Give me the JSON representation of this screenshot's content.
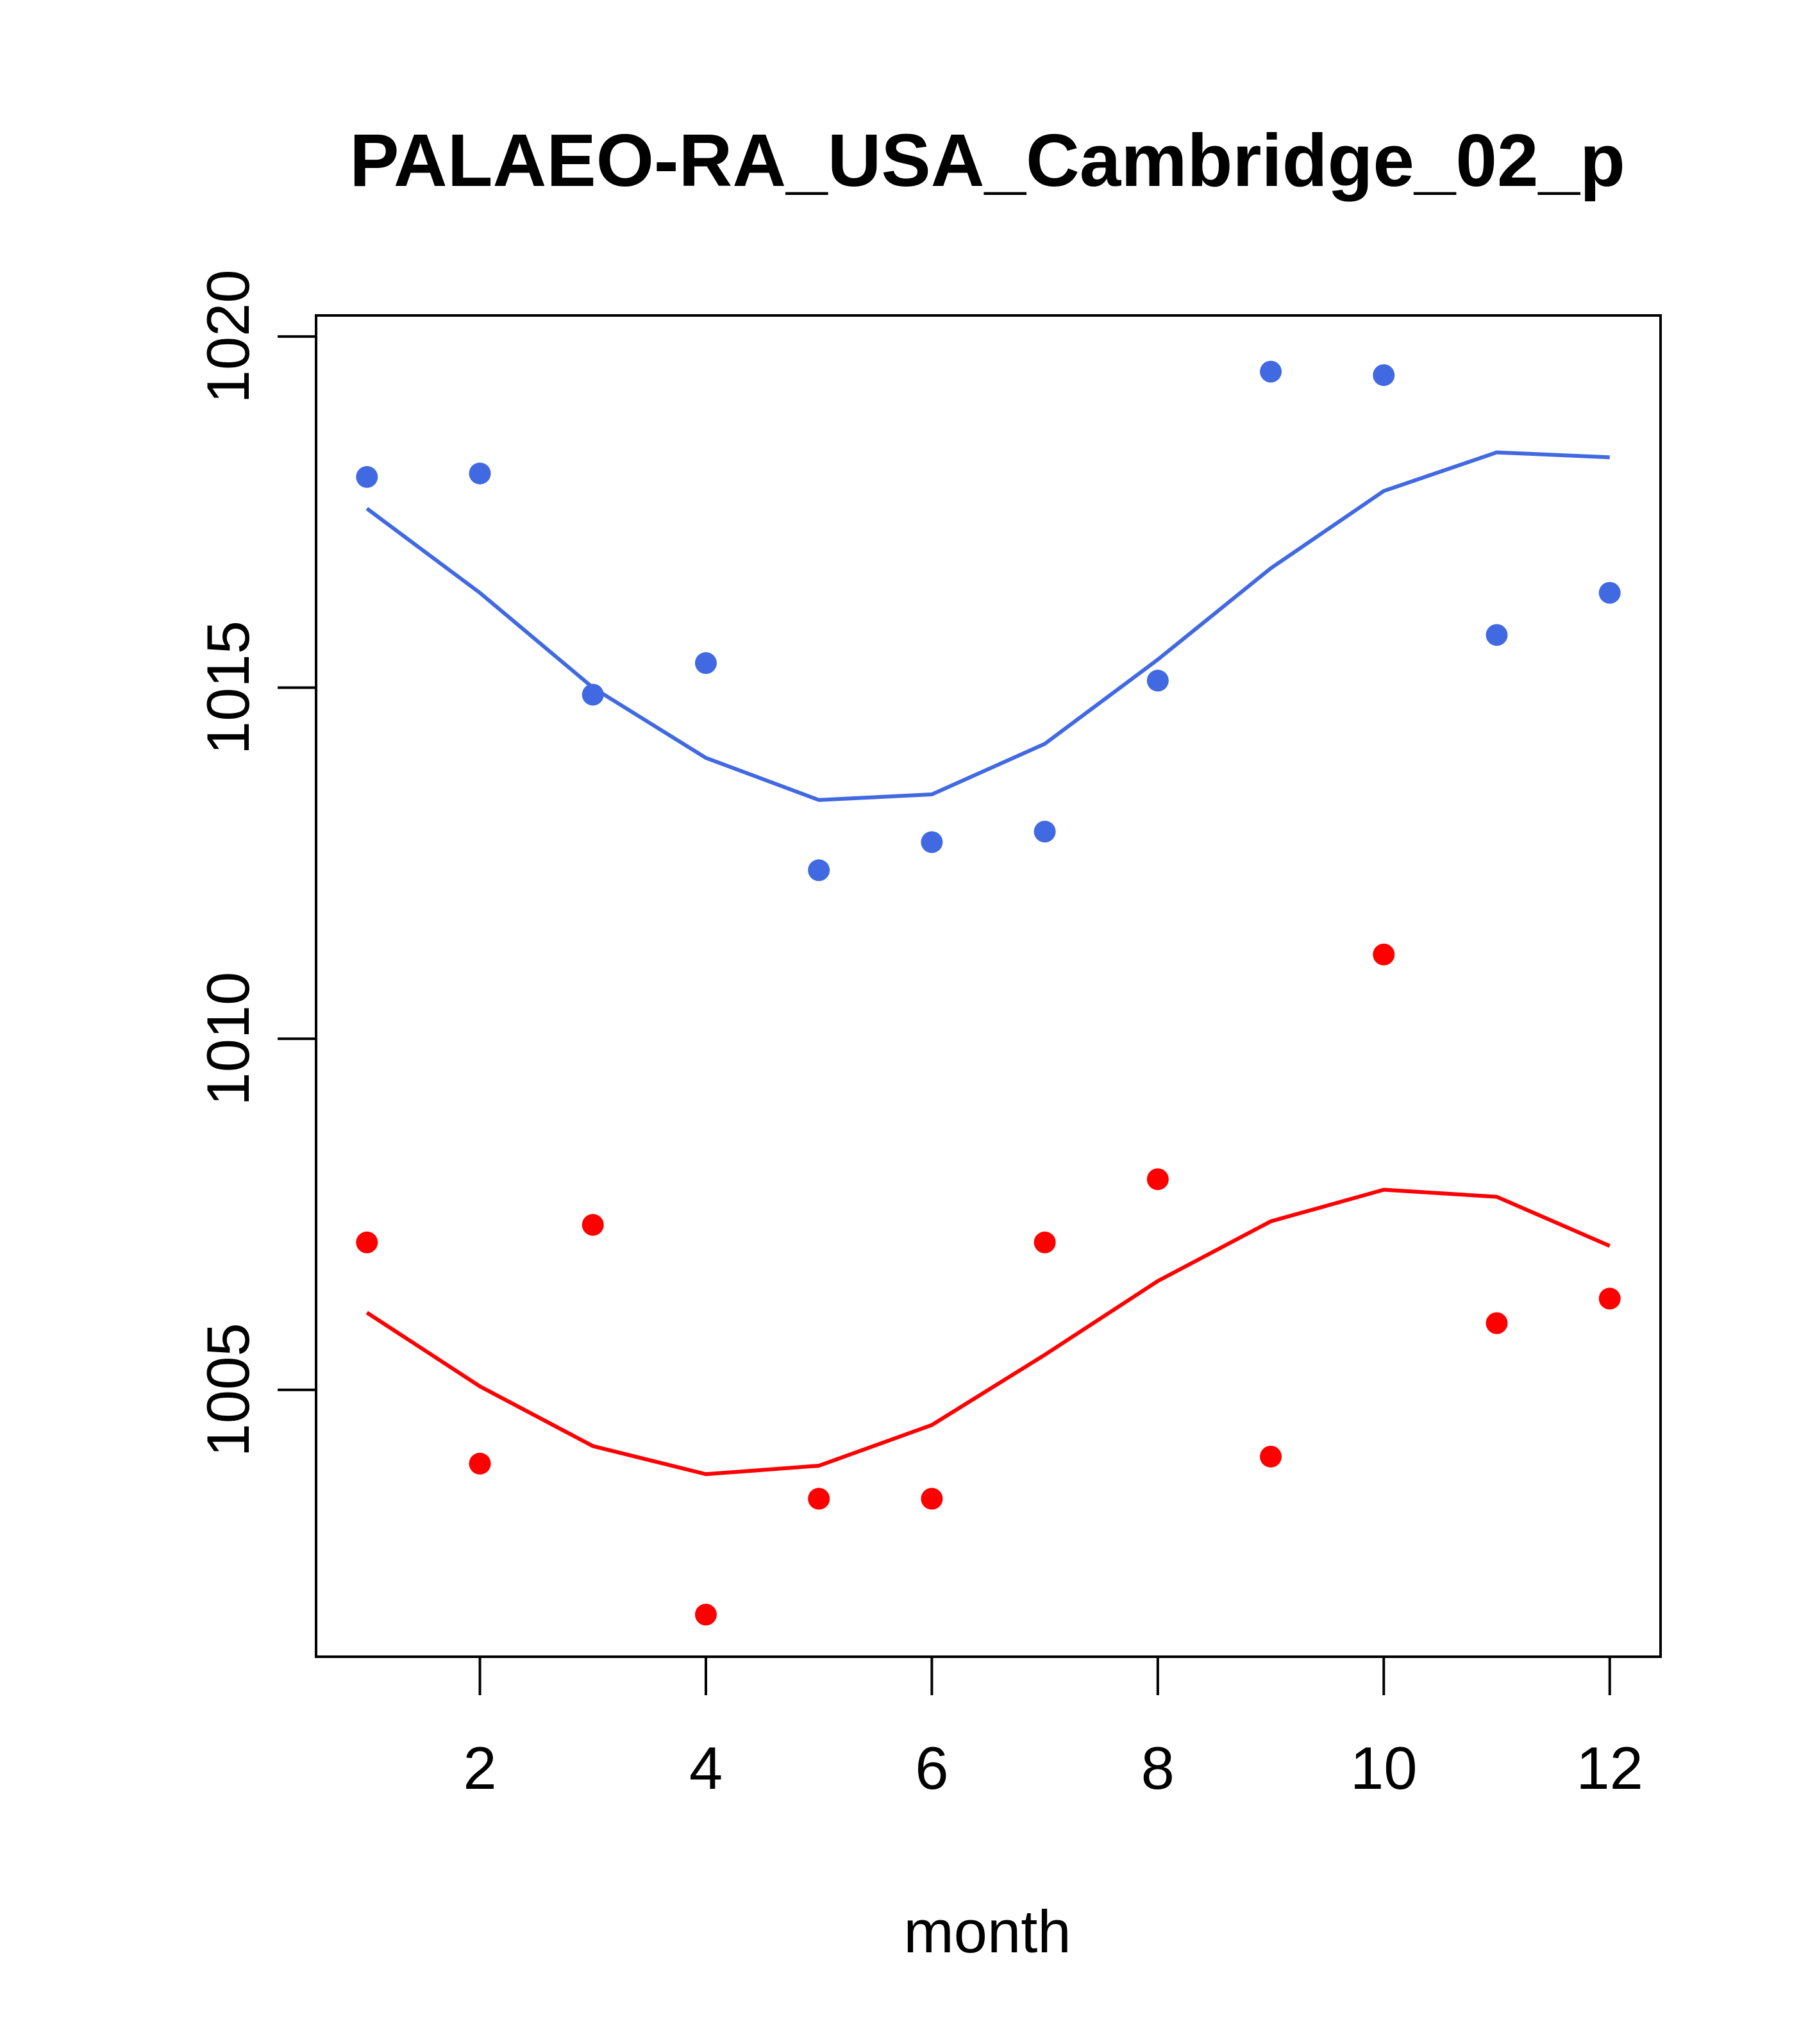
{
  "chart_data": {
    "type": "scatter",
    "title": "PALAEO-RA_USA_Cambridge_02_p",
    "xlabel": "month",
    "ylabel": "",
    "xlim": [
      0.55,
      12.45
    ],
    "ylim": [
      1001.2,
      1020.3
    ],
    "x_ticks": [
      2,
      4,
      6,
      8,
      10,
      12
    ],
    "x_tick_labels": [
      "2",
      "4",
      "6",
      "8",
      "10",
      "12"
    ],
    "y_ticks": [
      1005,
      1010,
      1015,
      1020
    ],
    "y_tick_labels": [
      "1005",
      "1010",
      "1015",
      "1020"
    ],
    "grid": false,
    "legend": "none",
    "series": [
      {
        "name": "blue-points",
        "kind": "points",
        "color": "#4169e1",
        "x": [
          1,
          2,
          3,
          4,
          5,
          6,
          7,
          8,
          9,
          10,
          11,
          12
        ],
        "values": [
          1018.0,
          1018.05,
          1014.9,
          1015.35,
          1012.4,
          1012.8,
          1012.95,
          1015.1,
          1019.5,
          1019.45,
          1015.75,
          1016.35
        ]
      },
      {
        "name": "blue-line",
        "kind": "line",
        "color": "#4169e1",
        "x": [
          1,
          2,
          3,
          4,
          5,
          6,
          7,
          8,
          9,
          10,
          11,
          12
        ],
        "values": [
          1017.55,
          1016.35,
          1015.0,
          1014.0,
          1013.4,
          1013.48,
          1014.2,
          1015.4,
          1016.7,
          1017.8,
          1018.35,
          1018.28
        ]
      },
      {
        "name": "red-points",
        "kind": "points",
        "color": "#ff0000",
        "x": [
          1,
          2,
          3,
          4,
          5,
          6,
          7,
          8,
          9,
          10,
          11,
          12
        ],
        "values": [
          1007.1,
          1003.95,
          1007.35,
          1001.8,
          1003.45,
          1003.45,
          1007.1,
          1008.0,
          1004.05,
          1011.2,
          1005.95,
          1006.3
        ]
      },
      {
        "name": "red-line",
        "kind": "line",
        "color": "#ff0000",
        "x": [
          1,
          2,
          3,
          4,
          5,
          6,
          7,
          8,
          9,
          10,
          11,
          12
        ],
        "values": [
          1006.1,
          1005.05,
          1004.2,
          1003.8,
          1003.92,
          1004.5,
          1005.5,
          1006.55,
          1007.4,
          1007.85,
          1007.75,
          1007.05
        ]
      }
    ]
  }
}
